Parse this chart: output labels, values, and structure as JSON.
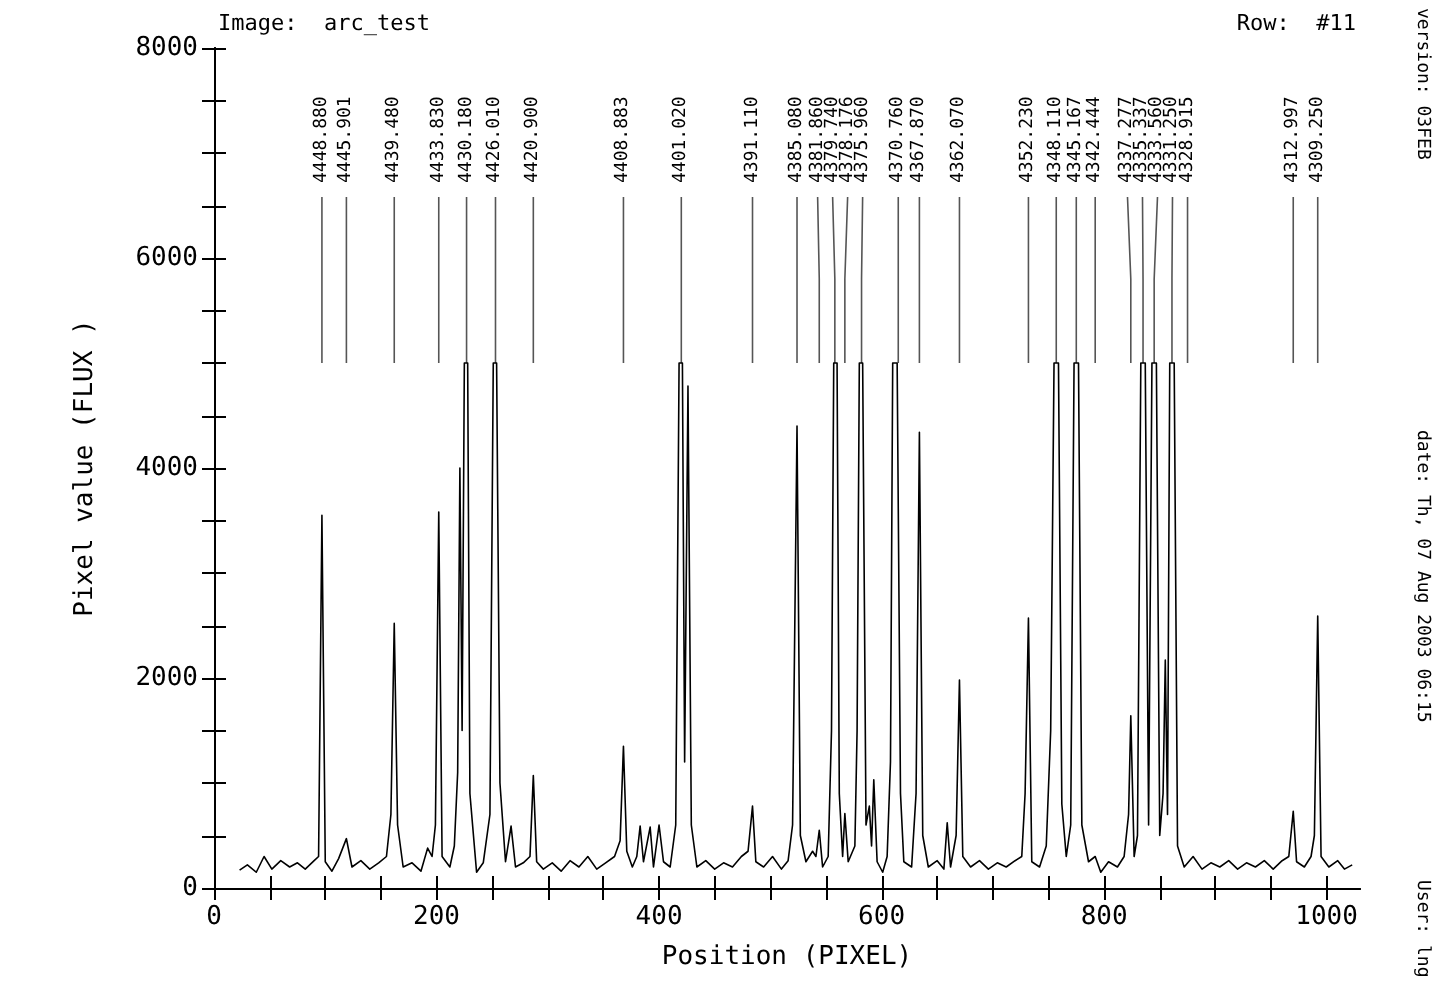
{
  "chart_data": {
    "type": "line",
    "title": "Image:  arc_test",
    "subtitle": "Row:  #11",
    "xlabel": "Position (PIXEL)",
    "ylabel": "Pixel value (FLUX )",
    "xlim": [
      0,
      1030
    ],
    "ylim": [
      0,
      8000
    ],
    "xticks": [
      0,
      {
        "value": 50,
        "label": null
      },
      {
        "value": 100,
        "label": null
      },
      {
        "value": 150,
        "label": null
      },
      200,
      {
        "value": 250,
        "label": null
      },
      {
        "value": 300,
        "label": null
      },
      {
        "value": 350,
        "label": null
      },
      400,
      {
        "value": 450,
        "label": null
      },
      {
        "value": 500,
        "label": null
      },
      {
        "value": 550,
        "label": null
      },
      600,
      {
        "value": 650,
        "label": null
      },
      {
        "value": 700,
        "label": null
      },
      {
        "value": 750,
        "label": null
      },
      800,
      {
        "value": 850,
        "label": null
      },
      {
        "value": 900,
        "label": null
      },
      {
        "value": 950,
        "label": null
      },
      1000
    ],
    "yticks": [
      0,
      {
        "value": 500,
        "label": null
      },
      {
        "value": 1000,
        "label": null
      },
      {
        "value": 1500,
        "label": null
      },
      2000,
      {
        "value": 2500,
        "label": null
      },
      {
        "value": 3000,
        "label": null
      },
      {
        "value": 3500,
        "label": null
      },
      4000,
      {
        "value": 4500,
        "label": null
      },
      {
        "value": 5000,
        "label": null
      },
      {
        "value": 5500,
        "label": null
      },
      6000,
      {
        "value": 6500,
        "label": null
      },
      {
        "value": 7000,
        "label": null
      },
      {
        "value": 7500,
        "label": null
      },
      8000
    ],
    "grid": false,
    "marker": "none",
    "line_style": "solid",
    "series": [
      {
        "color": "#000000",
        "x": [
          23,
          30,
          38,
          45,
          52,
          60,
          68,
          75,
          82,
          90,
          94,
          97,
          100,
          106,
          112,
          119,
          124,
          132,
          140,
          148,
          155,
          159,
          162,
          165,
          170,
          178,
          186,
          192,
          196,
          199,
          202,
          205,
          212,
          216,
          219,
          221,
          223,
          225,
          228,
          230,
          236,
          242,
          248,
          251,
          254,
          257,
          262,
          267,
          271,
          278,
          284,
          287,
          290,
          296,
          304,
          312,
          320,
          328,
          336,
          344,
          352,
          360,
          365,
          368,
          371,
          376,
          380,
          383,
          386,
          392,
          395,
          400,
          404,
          410,
          415,
          418,
          421,
          423,
          426,
          429,
          434,
          442,
          450,
          458,
          466,
          474,
          480,
          484,
          487,
          494,
          502,
          510,
          516,
          520,
          524,
          527,
          532,
          538,
          541,
          544,
          547,
          552,
          555,
          557,
          560,
          562,
          565,
          567,
          570,
          576,
          578,
          580,
          583,
          586,
          589,
          591,
          593,
          596,
          601,
          605,
          608,
          610,
          614,
          617,
          620,
          627,
          631,
          634,
          637,
          642,
          650,
          656,
          659,
          662,
          667,
          670,
          673,
          680,
          688,
          696,
          704,
          712,
          720,
          726,
          729,
          732,
          735,
          742,
          748,
          752,
          755,
          759,
          762,
          766,
          770,
          773,
          777,
          780,
          786,
          792,
          797,
          804,
          812,
          818,
          822,
          824,
          827,
          830,
          833,
          837,
          840,
          843,
          847,
          850,
          853,
          855,
          857,
          859,
          863,
          866,
          872,
          880,
          888,
          896,
          904,
          912,
          920,
          928,
          936,
          944,
          952,
          960,
          966,
          970,
          973,
          980,
          986,
          989,
          992,
          995,
          1002,
          1010,
          1016,
          1023
        ],
        "values": [
          170,
          220,
          150,
          300,
          180,
          260,
          200,
          240,
          180,
          260,
          300,
          3550,
          250,
          160,
          280,
          470,
          200,
          260,
          180,
          240,
          300,
          700,
          2520,
          600,
          200,
          240,
          160,
          380,
          300,
          600,
          3580,
          300,
          200,
          400,
          1100,
          4000,
          1500,
          5000,
          5000,
          900,
          150,
          240,
          700,
          5000,
          5000,
          1000,
          250,
          590,
          200,
          240,
          300,
          1070,
          250,
          180,
          240,
          160,
          260,
          200,
          300,
          180,
          240,
          300,
          450,
          1350,
          350,
          200,
          300,
          590,
          250,
          580,
          200,
          600,
          250,
          200,
          600,
          5000,
          5000,
          1200,
          4780,
          600,
          200,
          260,
          180,
          240,
          200,
          300,
          350,
          780,
          250,
          200,
          300,
          180,
          260,
          600,
          4400,
          500,
          250,
          350,
          300,
          550,
          200,
          300,
          1500,
          5000,
          5000,
          900,
          300,
          710,
          250,
          400,
          1500,
          5000,
          5000,
          600,
          780,
          400,
          1030,
          250,
          150,
          300,
          1200,
          5000,
          5000,
          900,
          250,
          200,
          900,
          4340,
          500,
          200,
          260,
          180,
          620,
          200,
          500,
          1980,
          300,
          200,
          260,
          180,
          240,
          200,
          260,
          300,
          900,
          2570,
          250,
          200,
          400,
          1500,
          5000,
          5000,
          800,
          300,
          600,
          5000,
          5000,
          600,
          250,
          300,
          150,
          250,
          200,
          300,
          700,
          1640,
          300,
          500,
          5000,
          5000,
          600,
          5000,
          5000,
          500,
          900,
          2170,
          700,
          5000,
          5000,
          400,
          200,
          300,
          180,
          240,
          200,
          260,
          180,
          240,
          200,
          260,
          180,
          260,
          300,
          730,
          250,
          200,
          300,
          500,
          2590,
          300,
          200,
          260,
          180,
          220
        ]
      }
    ],
    "annotations": [
      {
        "text": "4448.880",
        "x": 97
      },
      {
        "text": "4445.901",
        "x": 119
      },
      {
        "text": "4439.480",
        "x": 162
      },
      {
        "text": "4433.830",
        "x": 202
      },
      {
        "text": "4430.180",
        "x": 227
      },
      {
        "text": "4426.010",
        "x": 253
      },
      {
        "text": "4420.900",
        "x": 287
      },
      {
        "text": "4408.883",
        "x": 368
      },
      {
        "text": "4401.020",
        "x": 420
      },
      {
        "text": "4391.110",
        "x": 484
      },
      {
        "text": "4385.080",
        "x": 524
      },
      {
        "text": "4381.860",
        "x": 544
      },
      {
        "text": "4379.740",
        "x": 558
      },
      {
        "text": "4378.176",
        "x": 567
      },
      {
        "text": "4375.960",
        "x": 582
      },
      {
        "text": "4370.760",
        "x": 615
      },
      {
        "text": "4367.870",
        "x": 634
      },
      {
        "text": "4362.070",
        "x": 670
      },
      {
        "text": "4352.230",
        "x": 732
      },
      {
        "text": "4348.110",
        "x": 757
      },
      {
        "text": "4345.167",
        "x": 775
      },
      {
        "text": "4342.444",
        "x": 792
      },
      {
        "text": "4337.277",
        "x": 824
      },
      {
        "text": "4335.337",
        "x": 835
      },
      {
        "text": "4333.560",
        "x": 845
      },
      {
        "text": "4331.250",
        "x": 861
      },
      {
        "text": "4328.915",
        "x": 875
      },
      {
        "text": "4312.997",
        "x": 970
      },
      {
        "text": "4309.250",
        "x": 992
      },
      "version: 03FEB",
      "date: Th, 07 Aug 2003 06:15",
      "User: lng"
    ]
  }
}
